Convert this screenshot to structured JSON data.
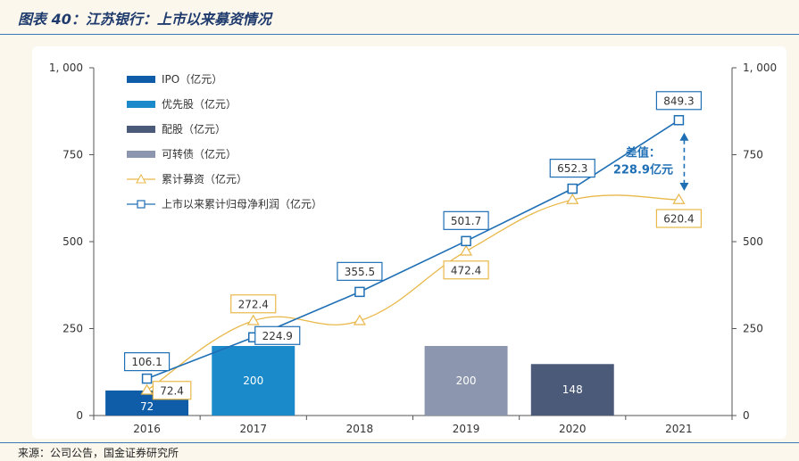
{
  "header": {
    "title": "图表 40：江苏银行：上市以来募资情况"
  },
  "source": "来源：公司公告，国金证券研究所",
  "colors": {
    "ipo": "#0F5DA8",
    "preferred": "#1A8ACB",
    "rights": "#4A5A78",
    "convertible": "#8C96AE",
    "cum_fund": "#E9B84A",
    "cum_profit": "#1F6FB5"
  },
  "chart_data": {
    "type": "bar",
    "categories": [
      "2016",
      "2017",
      "2018",
      "2019",
      "2020",
      "2021"
    ],
    "ylim": [
      0,
      1000
    ],
    "yticks": [
      "0",
      "250",
      "500",
      "750",
      "1, 000"
    ],
    "ytick_values": [
      0,
      250,
      500,
      750,
      1000
    ],
    "bars": [
      {
        "series": "IPO（亿元）",
        "category_index": 0,
        "value": 72,
        "label": "72"
      },
      {
        "series": "优先股（亿元）",
        "category_index": 1,
        "value": 200,
        "label": "200"
      },
      {
        "series": "可转债（亿元）",
        "category_index": 3,
        "value": 200,
        "label": "200"
      },
      {
        "series": "配股（亿元）",
        "category_index": 4,
        "value": 148,
        "label": "148"
      }
    ],
    "legend": [
      {
        "name": "IPO（亿元）",
        "kind": "bar",
        "color_key": "ipo"
      },
      {
        "name": "优先股（亿元）",
        "kind": "bar",
        "color_key": "preferred"
      },
      {
        "name": "配股（亿元）",
        "kind": "bar",
        "color_key": "rights"
      },
      {
        "name": "可转债（亿元）",
        "kind": "bar",
        "color_key": "convertible"
      },
      {
        "name": "累计募资（亿元）",
        "kind": "line-triangle",
        "color_key": "cum_fund"
      },
      {
        "name": "上市以来累计归母净利润（亿元）",
        "kind": "line-square",
        "color_key": "cum_profit"
      }
    ],
    "lines": [
      {
        "name": "累计募资（亿元）",
        "values": [
          72.4,
          272.4,
          272.4,
          472.4,
          620.4,
          620.4
        ],
        "labels": [
          "72.4",
          "272.4",
          "",
          "472.4",
          "",
          "620.4"
        ]
      },
      {
        "name": "上市以来累计归母净利润（亿元）",
        "values": [
          106.1,
          224.9,
          355.5,
          501.7,
          652.3,
          849.3
        ],
        "labels": [
          "106.1",
          "224.9",
          "355.5",
          "501.7",
          "652.3",
          "849.3"
        ]
      }
    ],
    "annotation": {
      "line1": "差值：",
      "line2": "228.9亿元"
    }
  }
}
